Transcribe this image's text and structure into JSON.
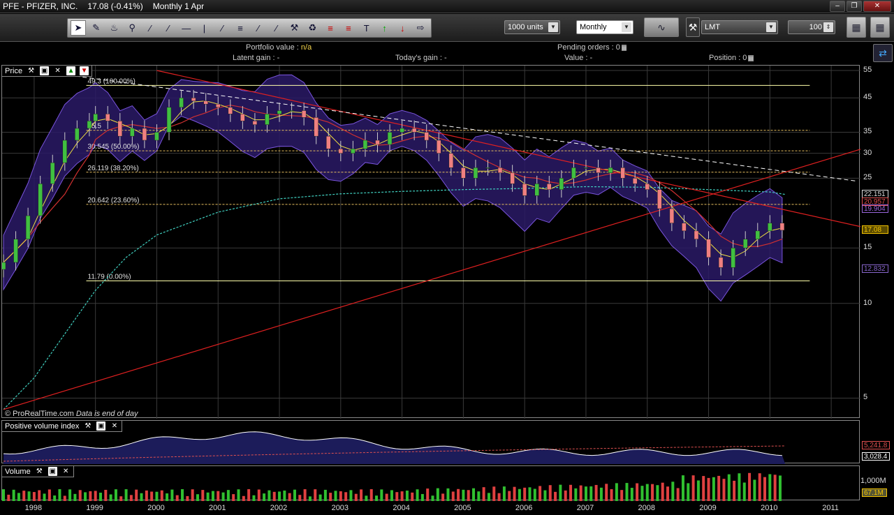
{
  "window": {
    "symbol": "PFE - PFIZER, INC.",
    "quote": "17.08 (-0.41%)",
    "period": "Monthly  1 Apr"
  },
  "toolbar": {
    "units_label": "1000 units",
    "timeframe_label": "Monthly",
    "ticker_label": "LMT",
    "quantity_label": "100"
  },
  "info": {
    "portfolio_label": "Portfolio value :",
    "portfolio_value": "n/a",
    "latent_label": "Latent gain : -",
    "today_label": "Today's gain : -",
    "pending_label": "Pending orders : 0",
    "value_label": "Value : -",
    "position_label": "Position : 0"
  },
  "price_panel": {
    "title": "Price",
    "copyright": "© ProRealTime.com",
    "eod_note": "Data is end of day",
    "fib_labels": [
      "49.3 (100.00%)",
      "35.5",
      "30.545 (50.00%)",
      "26.119 (38.20%)",
      "20.642 (23.60%)",
      "11.79 (0.00%)"
    ],
    "y_ticks": [
      "55",
      "45",
      "35",
      "30",
      "25",
      "15",
      "10",
      "5"
    ],
    "price_boxes": [
      {
        "text": "22.151",
        "color": "#dddddd"
      },
      {
        "text": "20.957",
        "color": "#e05050"
      },
      {
        "text": "19.904",
        "color": "#9966dd"
      },
      {
        "text": "17.08",
        "color": "#f5c400"
      },
      {
        "text": "12.832",
        "color": "#8866cc"
      }
    ]
  },
  "pvi_panel": {
    "title": "Positive volume index",
    "values": [
      {
        "text": "5,241.8",
        "color": "#e05050"
      },
      {
        "text": "3,028.4",
        "color": "#ffffff"
      }
    ]
  },
  "volume_panel": {
    "title": "Volume",
    "tick": "1,000M",
    "last": "67.1M"
  },
  "time_axis": [
    "1998",
    "1999",
    "2000",
    "2001",
    "2002",
    "2003",
    "2004",
    "2005",
    "2006",
    "2007",
    "2008",
    "2009",
    "2010",
    "2011"
  ],
  "chart_data": {
    "type": "candlestick",
    "title": "PFE - PFIZER, INC.",
    "timeframe": "Monthly",
    "y_scale": "log",
    "ylim": [
      4.3,
      57
    ],
    "x_range": [
      "1997-06",
      "2011-06"
    ],
    "grid": true,
    "fibonacci": [
      {
        "level": 49.3,
        "pct": "100.00%"
      },
      {
        "level": 35.5
      },
      {
        "level": 30.545,
        "pct": "50.00%"
      },
      {
        "level": 26.119,
        "pct": "38.20%"
      },
      {
        "level": 20.642,
        "pct": "23.60%"
      },
      {
        "level": 11.79,
        "pct": "0.00%"
      }
    ],
    "close_series": {
      "t": [
        1997.5,
        1997.7,
        1997.9,
        1998.1,
        1998.3,
        1998.5,
        1998.7,
        1998.9,
        1999.0,
        1999.2,
        1999.4,
        1999.6,
        1999.8,
        2000.0,
        2000.2,
        2000.4,
        2000.6,
        2000.8,
        2001.0,
        2001.2,
        2001.4,
        2001.6,
        2001.8,
        2002.0,
        2002.2,
        2002.4,
        2002.6,
        2002.8,
        2003.0,
        2003.2,
        2003.4,
        2003.6,
        2003.8,
        2004.0,
        2004.2,
        2004.4,
        2004.6,
        2004.8,
        2005.0,
        2005.2,
        2005.4,
        2005.6,
        2005.8,
        2006.0,
        2006.2,
        2006.4,
        2006.6,
        2006.8,
        2007.0,
        2007.2,
        2007.4,
        2007.6,
        2007.8,
        2008.0,
        2008.2,
        2008.4,
        2008.6,
        2008.8,
        2009.0,
        2009.2,
        2009.4,
        2009.6,
        2009.8,
        2010.0,
        2010.2
      ],
      "v": [
        13.5,
        16,
        19,
        24,
        28,
        33,
        36,
        38,
        40,
        38,
        34,
        36,
        33,
        35,
        42,
        45,
        44,
        43,
        42,
        40,
        38,
        37,
        40,
        41,
        41,
        39,
        34,
        31,
        30,
        31,
        33,
        32,
        35,
        36,
        35,
        33,
        30,
        27,
        25,
        27,
        27,
        26,
        24,
        22,
        24,
        23,
        25,
        27,
        27,
        26,
        27,
        25,
        24,
        23,
        20,
        18,
        17,
        16,
        14,
        13,
        15,
        16,
        17,
        18,
        17.08
      ]
    },
    "volume": {
      "tick_label": "1,000M",
      "last": "67.1M"
    },
    "indicators": [
      "Bollinger bands",
      "moving averages",
      "trend lines",
      "Positive volume index"
    ],
    "pvi": {
      "values": [
        5241.8,
        3028.4
      ]
    }
  }
}
